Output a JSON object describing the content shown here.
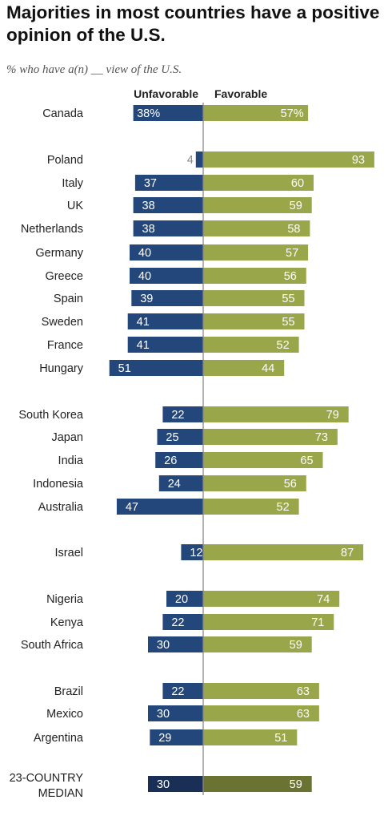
{
  "chart_data": {
    "type": "bar",
    "title": "Majorities in most countries have a positive opinion of the U.S.",
    "subtitle": "% who have a(n) __ view of the U.S.",
    "series": [
      {
        "name": "Unfavorable",
        "color": "#23477a",
        "values": [
          38,
          4,
          37,
          38,
          38,
          40,
          40,
          39,
          41,
          41,
          51,
          22,
          25,
          26,
          24,
          47,
          12,
          20,
          22,
          30,
          22,
          30,
          29,
          30
        ]
      },
      {
        "name": "Favorable",
        "color": "#9aa64a",
        "values": [
          57,
          93,
          60,
          59,
          58,
          57,
          56,
          55,
          55,
          52,
          44,
          79,
          73,
          65,
          56,
          52,
          87,
          74,
          71,
          59,
          63,
          63,
          51,
          59
        ]
      }
    ],
    "rows": [
      {
        "label": "Canada",
        "unfav": 38,
        "fav": 57,
        "unfav_label": "38%",
        "fav_label": "57%"
      },
      {
        "label": "Poland",
        "unfav": 4,
        "fav": 93,
        "unfav_label": "4",
        "fav_label": "93"
      },
      {
        "label": "Italy",
        "unfav": 37,
        "fav": 60,
        "unfav_label": "37",
        "fav_label": "60"
      },
      {
        "label": "UK",
        "unfav": 38,
        "fav": 59,
        "unfav_label": "38",
        "fav_label": "59"
      },
      {
        "label": "Netherlands",
        "unfav": 38,
        "fav": 58,
        "unfav_label": "38",
        "fav_label": "58"
      },
      {
        "label": "Germany",
        "unfav": 40,
        "fav": 57,
        "unfav_label": "40",
        "fav_label": "57"
      },
      {
        "label": "Greece",
        "unfav": 40,
        "fav": 56,
        "unfav_label": "40",
        "fav_label": "56"
      },
      {
        "label": "Spain",
        "unfav": 39,
        "fav": 55,
        "unfav_label": "39",
        "fav_label": "55"
      },
      {
        "label": "Sweden",
        "unfav": 41,
        "fav": 55,
        "unfav_label": "41",
        "fav_label": "55"
      },
      {
        "label": "France",
        "unfav": 41,
        "fav": 52,
        "unfav_label": "41",
        "fav_label": "52"
      },
      {
        "label": "Hungary",
        "unfav": 51,
        "fav": 44,
        "unfav_label": "51",
        "fav_label": "44"
      },
      {
        "label": "South Korea",
        "unfav": 22,
        "fav": 79,
        "unfav_label": "22",
        "fav_label": "79"
      },
      {
        "label": "Japan",
        "unfav": 25,
        "fav": 73,
        "unfav_label": "25",
        "fav_label": "73"
      },
      {
        "label": "India",
        "unfav": 26,
        "fav": 65,
        "unfav_label": "26",
        "fav_label": "65"
      },
      {
        "label": "Indonesia",
        "unfav": 24,
        "fav": 56,
        "unfav_label": "24",
        "fav_label": "56"
      },
      {
        "label": "Australia",
        "unfav": 47,
        "fav": 52,
        "unfav_label": "47",
        "fav_label": "52"
      },
      {
        "label": "Israel",
        "unfav": 12,
        "fav": 87,
        "unfav_label": "12",
        "fav_label": "87"
      },
      {
        "label": "Nigeria",
        "unfav": 20,
        "fav": 74,
        "unfav_label": "20",
        "fav_label": "74"
      },
      {
        "label": "Kenya",
        "unfav": 22,
        "fav": 71,
        "unfav_label": "22",
        "fav_label": "71"
      },
      {
        "label": "South Africa",
        "unfav": 30,
        "fav": 59,
        "unfav_label": "30",
        "fav_label": "59"
      },
      {
        "label": "Brazil",
        "unfav": 22,
        "fav": 63,
        "unfav_label": "22",
        "fav_label": "63"
      },
      {
        "label": "Mexico",
        "unfav": 30,
        "fav": 63,
        "unfav_label": "30",
        "fav_label": "63"
      },
      {
        "label": "Argentina",
        "unfav": 29,
        "fav": 51,
        "unfav_label": "29",
        "fav_label": "51"
      },
      {
        "label": "23-COUNTRY MEDIAN",
        "label_lines": [
          "23-COUNTRY",
          "MEDIAN"
        ],
        "unfav": 30,
        "fav": 59,
        "unfav_label": "30",
        "fav_label": "59",
        "is_median": true
      }
    ],
    "colors": {
      "unfavorable": "#23477a",
      "favorable": "#9aa64a",
      "median_unfavorable": "#1a2f55",
      "median_favorable": "#6b7333",
      "axis_line": "#888888",
      "small_value_text": "#888888"
    },
    "grid": false,
    "legend": "column headers above bars"
  }
}
